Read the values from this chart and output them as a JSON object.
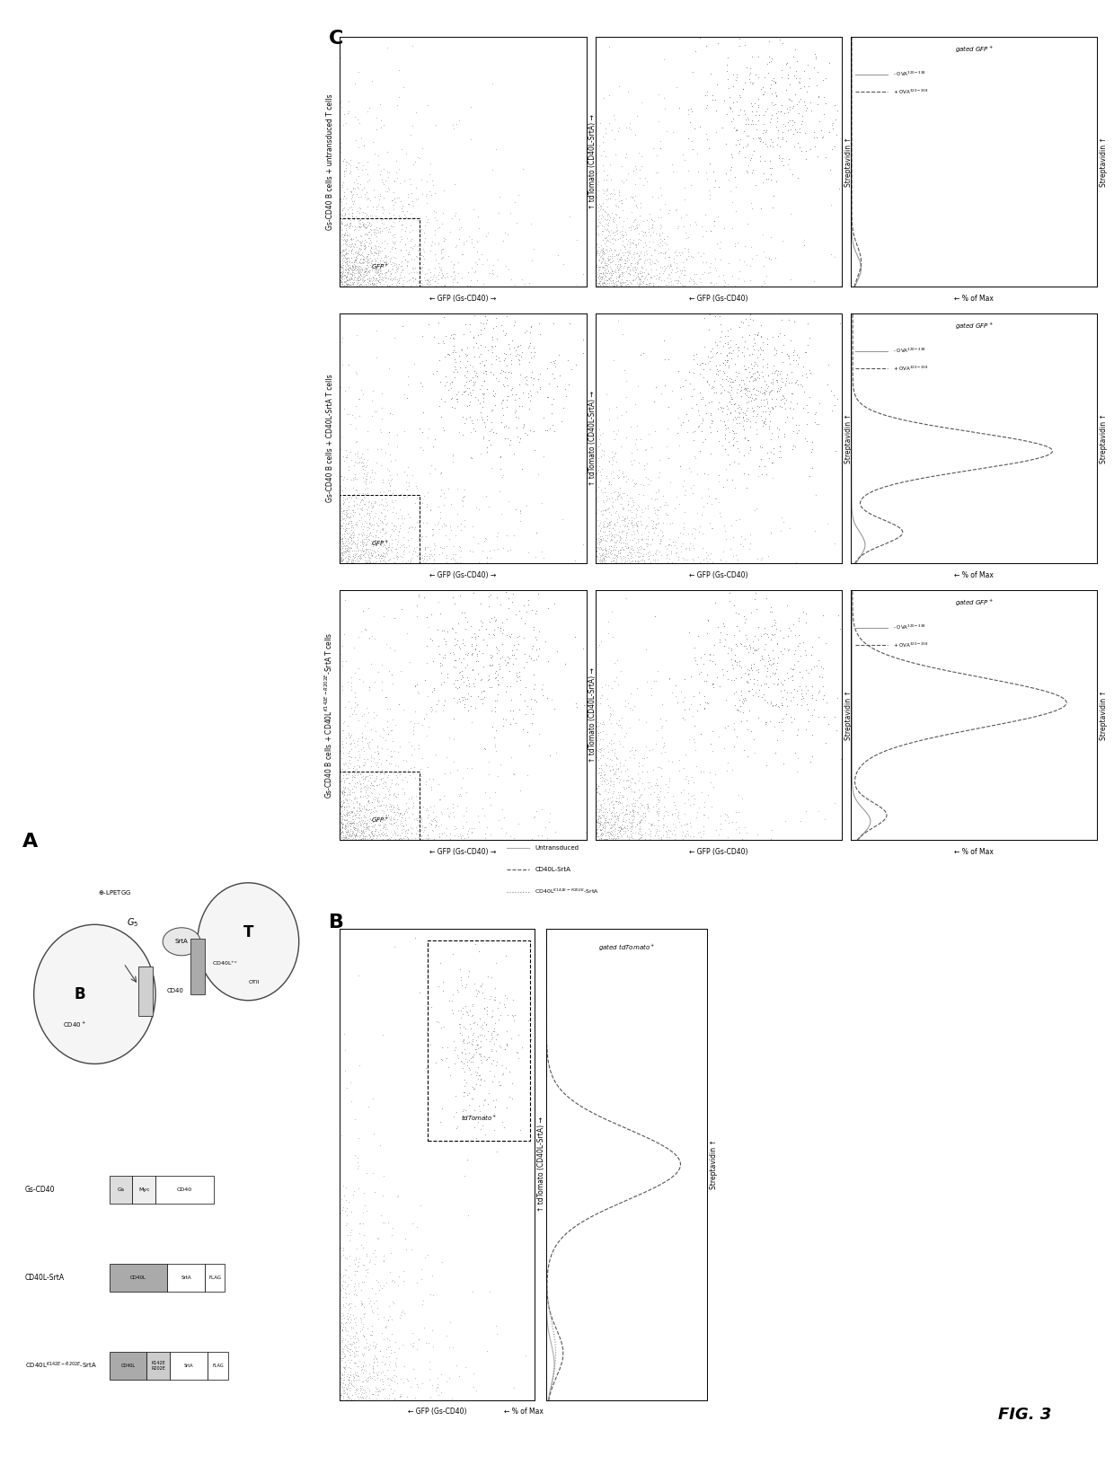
{
  "fig_label": "FIG. 3",
  "background": "#ffffff",
  "dot_color": "#777777",
  "dot_alpha": 0.5,
  "dot_size": 0.4,
  "line_color_minus": "#999999",
  "line_color_plus": "#444444",
  "line_color_cd40l": "#555555",
  "line_color_mut": "#888888",
  "line_color_untrans": "#aaaaaa",
  "panel_A_label": "A",
  "panel_B_label": "B",
  "panel_C_label": "C",
  "row_labels_C": [
    "Gs-CD40 B cells + untransduced T cells",
    "Gs-CD40 B cells + CD40L-SrtA T cells",
    "Gs-CD40 B cells + CD40L$^{K142E-R202E}$-SrtA T cells"
  ],
  "xlabel_col0": "GFP (Gs-CD40)",
  "ylabel_col0_row0": "tdTomato (CD40L-SrtA)",
  "xlabel_col1": "GFP (Gs-CD40)",
  "ylabel_col1": "Streptavidin",
  "xlabel_hist": "% of Max",
  "ylabel_hist": "Streptavidin",
  "hist_legend_minus": "- OVA$^{320-338}$",
  "hist_legend_plus": "+ OVA$^{320-338}$",
  "hist_title": "gated GFP$^+$",
  "B_hist_title": "gated tdTomato$^+$",
  "B_legend1": "Untransduced",
  "B_legend2": "CD40L-SrtA",
  "B_legend3": "CD40L$^{K142E-R202E}$-SrtA",
  "B_scatter_xlabel": "GFP (Gs-CD40)",
  "B_scatter_ylabel": "tdTomato (CD40L-SrtA)",
  "B_hist_ylabel": "Streptavidin",
  "B_hist_xlabel": "% of Max",
  "diag_labels": [
    "Gs-CD40",
    "CD40L-SrtA",
    "CD40L$^{K142E-R202E}$-SrtA"
  ],
  "diag_domains": [
    [
      [
        "Gs",
        "#dddddd"
      ],
      [
        "Myc",
        "#eeeeee"
      ],
      [
        "CD40",
        "#ffffff"
      ]
    ],
    [
      [
        "CD40L",
        "#aaaaaa"
      ],
      [
        "SrtA",
        "#888888"
      ],
      [
        "FLAG",
        "#cccccc"
      ]
    ],
    [
      [
        "CD40L",
        "#888888"
      ],
      [
        "K142E\nR202E",
        "#bbbbbb"
      ],
      [
        "SrtA",
        "#888888"
      ],
      [
        "FLAG",
        "#cccccc"
      ]
    ]
  ]
}
